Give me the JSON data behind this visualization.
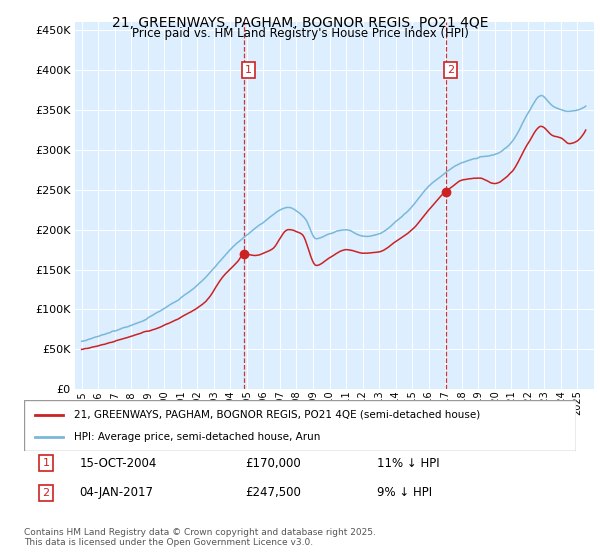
{
  "title": "21, GREENWAYS, PAGHAM, BOGNOR REGIS, PO21 4QE",
  "subtitle": "Price paid vs. HM Land Registry's House Price Index (HPI)",
  "sale1_date": "15-OCT-2004",
  "sale1_price": 170000,
  "sale1_label": "11% ↓ HPI",
  "sale1_year": 2004.8,
  "sale2_date": "04-JAN-2017",
  "sale2_price": 247500,
  "sale2_label": "9% ↓ HPI",
  "sale2_year": 2017.02,
  "legend1": "21, GREENWAYS, PAGHAM, BOGNOR REGIS, PO21 4QE (semi-detached house)",
  "legend2": "HPI: Average price, semi-detached house, Arun",
  "footer": "Contains HM Land Registry data © Crown copyright and database right 2025.\nThis data is licensed under the Open Government Licence v3.0.",
  "hpi_color": "#7ab8d9",
  "price_color": "#cc2222",
  "annotation_color": "#cc2222",
  "plot_bg": "#ddeeff"
}
